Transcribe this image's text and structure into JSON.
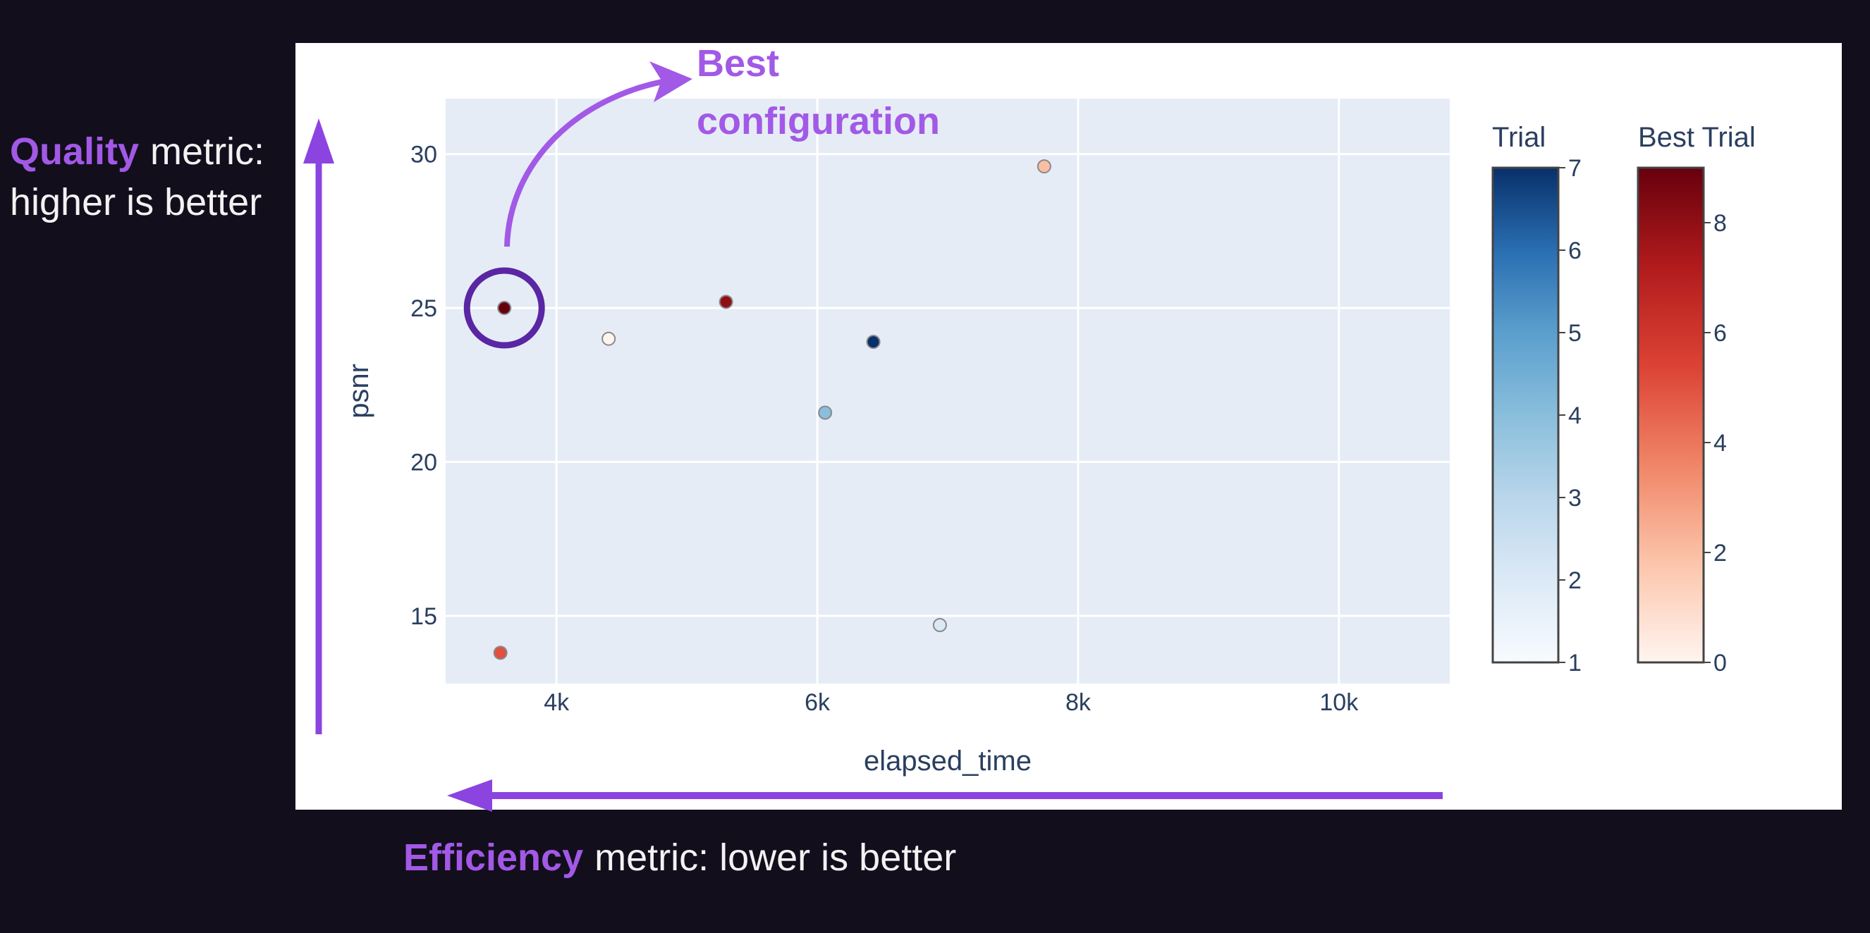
{
  "colors": {
    "page_bg": "#130e1c",
    "figure_bg": "#ffffff",
    "plot_bg": "#e5ecf6",
    "grid": "#ffffff",
    "accent": "#a259e6",
    "arrow": "#8b44e0",
    "highlight_ring": "#5a26a3",
    "annotation_text": "#f2f2f2",
    "axis_text": "#2a3f5f"
  },
  "annotations": {
    "quality_bold": "Quality",
    "quality_rest": "metric:",
    "quality_line2": "higher is better",
    "efficiency_bold": "Efficiency",
    "efficiency_rest": "metric: lower is better",
    "best_line1": "Best",
    "best_line2": "configuration"
  },
  "chart_data": {
    "type": "scatter",
    "xlabel": "elapsed_time",
    "ylabel": "psnr",
    "xlim": [
      3150,
      10850
    ],
    "ylim": [
      12.8,
      31.8
    ],
    "x_ticks": [
      4000,
      6000,
      8000,
      10000
    ],
    "x_tick_labels": [
      "4k",
      "6k",
      "8k",
      "10k"
    ],
    "y_ticks": [
      15,
      20,
      25,
      30
    ],
    "y_tick_labels": [
      "15",
      "20",
      "25",
      "30"
    ],
    "grid": true,
    "points": [
      {
        "x": 3600,
        "y": 25.0,
        "trial": 1,
        "best_trial": 9
      },
      {
        "x": 4400,
        "y": 24.0,
        "trial": 1,
        "best_trial": 0
      },
      {
        "x": 5300,
        "y": 25.2,
        "trial": 1,
        "best_trial": 8
      },
      {
        "x": 6430,
        "y": 23.9,
        "trial": 7,
        "best_trial": null
      },
      {
        "x": 6060,
        "y": 21.6,
        "trial": 4,
        "best_trial": null
      },
      {
        "x": 6940,
        "y": 14.7,
        "trial": 2,
        "best_trial": null
      },
      {
        "x": 3570,
        "y": 13.8,
        "trial": 1,
        "best_trial": 5
      },
      {
        "x": 7740,
        "y": 29.6,
        "trial": 1,
        "best_trial": 2
      }
    ],
    "highlighted_point_index": 0,
    "colorbars": [
      {
        "title": "Trial",
        "min": 1,
        "max": 7,
        "ticks": [
          "1",
          "2",
          "3",
          "4",
          "5",
          "6",
          "7"
        ],
        "colorscale": "Blues"
      },
      {
        "title": "Best Trial",
        "min": 0,
        "max": 9,
        "ticks": [
          "0",
          "2",
          "4",
          "6",
          "8"
        ],
        "colorscale": "Reds"
      }
    ]
  }
}
